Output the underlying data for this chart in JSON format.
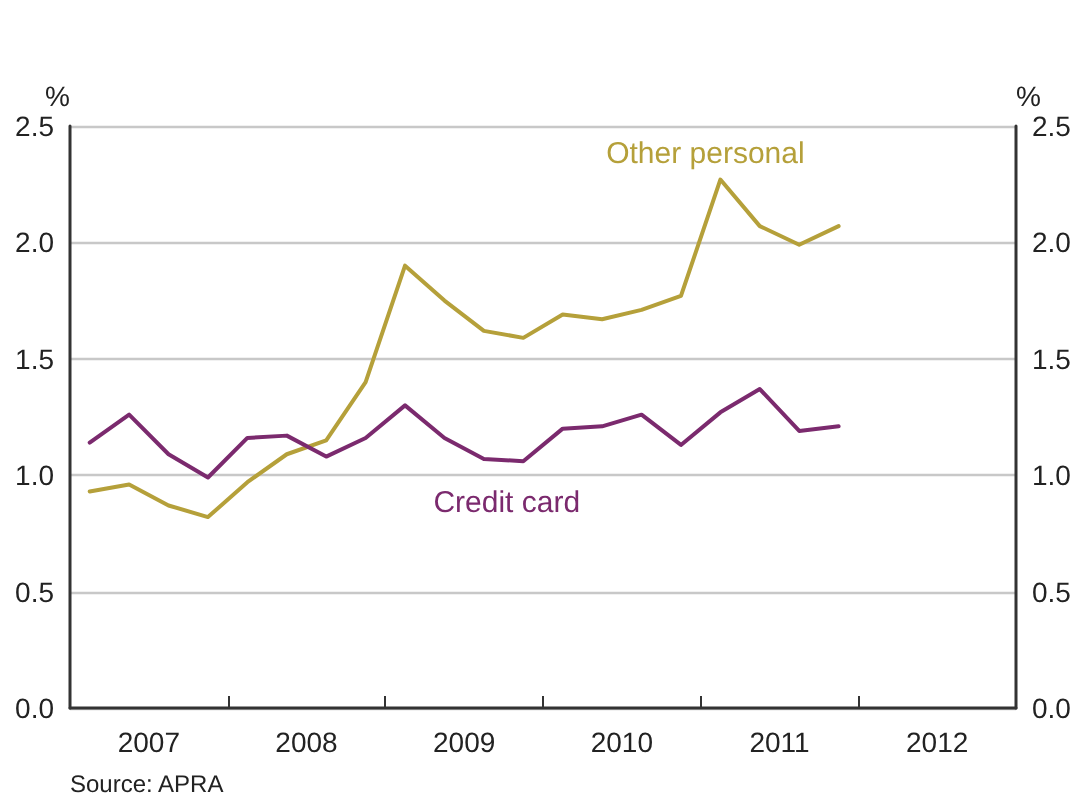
{
  "chart_data": {
    "type": "line",
    "ylabel": "%",
    "y2label": "%",
    "x": [
      2007.125,
      2007.375,
      2007.625,
      2007.875,
      2008.125,
      2008.375,
      2008.625,
      2008.875,
      2009.125,
      2009.375,
      2009.625,
      2009.875,
      2010.125,
      2010.375,
      2010.625,
      2010.875,
      2011.125,
      2011.375,
      2011.625,
      2011.875
    ],
    "series": [
      {
        "name": "Other personal",
        "color": "#b5a03a",
        "values": [
          0.93,
          0.96,
          0.87,
          0.82,
          0.97,
          1.09,
          1.15,
          1.4,
          1.9,
          1.75,
          1.62,
          1.59,
          1.69,
          1.67,
          1.71,
          1.77,
          2.27,
          2.07,
          1.99,
          2.07
        ]
      },
      {
        "name": "Credit card",
        "color": "#7b2a6e",
        "values": [
          1.14,
          1.26,
          1.09,
          0.99,
          1.16,
          1.17,
          1.08,
          1.16,
          1.3,
          1.16,
          1.07,
          1.06,
          1.2,
          1.21,
          1.26,
          1.13,
          1.27,
          1.37,
          1.19,
          1.21
        ]
      }
    ],
    "xlim": [
      2007,
      2013
    ],
    "xticks": [
      {
        "value": 2007.5,
        "label": "2007"
      },
      {
        "value": 2008,
        "label": null
      },
      {
        "value": 2008.5,
        "label": "2008"
      },
      {
        "value": 2009,
        "label": null
      },
      {
        "value": 2009.5,
        "label": "2009"
      },
      {
        "value": 2010,
        "label": null
      },
      {
        "value": 2010.5,
        "label": "2010"
      },
      {
        "value": 2011,
        "label": null
      },
      {
        "value": 2011.5,
        "label": "2011"
      },
      {
        "value": 2012,
        "label": null
      },
      {
        "value": 2012.5,
        "label": "2012"
      }
    ],
    "ylim": [
      0,
      2.5
    ],
    "yticks": [
      {
        "value": 0,
        "label": "0.0"
      },
      {
        "value": 0.5,
        "label": "0.5"
      },
      {
        "value": 1,
        "label": "1.0"
      },
      {
        "value": 1.5,
        "label": "1.5"
      },
      {
        "value": 2,
        "label": "2.0"
      },
      {
        "value": 2.5,
        "label": "2.5"
      }
    ],
    "y2lim": [
      0,
      2.5
    ],
    "y2ticks": [
      {
        "value": 0,
        "label": "0.0"
      },
      {
        "value": 0.5,
        "label": "0.5"
      },
      {
        "value": 1,
        "label": "1.0"
      },
      {
        "value": 1.5,
        "label": "1.5"
      },
      {
        "value": 2,
        "label": "2.0"
      },
      {
        "value": 2.5,
        "label": "2.5"
      }
    ],
    "grid": "y",
    "legend": false,
    "marker": "none",
    "line_style": "solid",
    "annotations": [
      "Source: APRA"
    ]
  }
}
